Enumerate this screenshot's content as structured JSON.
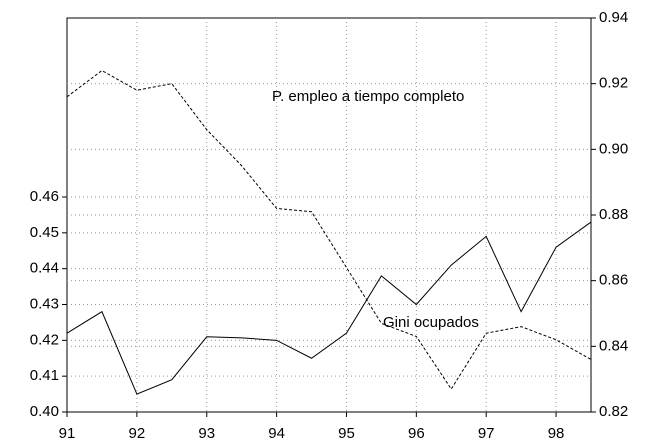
{
  "chart_data": {
    "type": "line",
    "x": [
      91,
      91.5,
      92,
      92.5,
      93,
      93.5,
      94,
      94.5,
      95,
      95.5,
      96,
      96.5,
      97,
      97.5,
      98,
      98.5
    ],
    "xlim": [
      91,
      98.5
    ],
    "xticks": [
      91,
      92,
      93,
      94,
      95,
      96,
      97,
      98
    ],
    "ylim": [
      0.4,
      0.46
    ],
    "yticks": [
      {
        "value": 0.4,
        "label": "0.40"
      },
      {
        "value": 0.41,
        "label": "0.41"
      },
      {
        "value": 0.42,
        "label": "0.42"
      },
      {
        "value": 0.43,
        "label": "0.43"
      },
      {
        "value": 0.44,
        "label": "0.44"
      },
      {
        "value": 0.45,
        "label": "0.45"
      },
      {
        "value": 0.46,
        "label": "0.46"
      }
    ],
    "y2lim": [
      0.82,
      0.94
    ],
    "y2ticks": [
      {
        "value": 0.82,
        "label": "0.82"
      },
      {
        "value": 0.84,
        "label": "0.84"
      },
      {
        "value": 0.86,
        "label": "0.86"
      },
      {
        "value": 0.88,
        "label": "0.88"
      },
      {
        "value": 0.9,
        "label": "0.90"
      },
      {
        "value": 0.92,
        "label": "0.92"
      },
      {
        "value": 0.94,
        "label": "0.94"
      }
    ],
    "grid": true,
    "series": [
      {
        "name": "Gini ocupados",
        "color": "#000000",
        "dash": false,
        "values": [
          0.422,
          0.428,
          0.405,
          0.409,
          0.421,
          0.4207,
          0.42,
          0.415,
          0.422,
          0.438,
          0.43,
          0.441,
          0.449,
          0.428,
          0.446,
          0.453
        ]
      },
      {
        "name": "P. empleo a tiempo completo",
        "color": "#000000",
        "dash": true,
        "axis": "y2",
        "values": [
          0.916,
          0.924,
          0.918,
          0.92,
          0.906,
          0.895,
          0.882,
          0.881,
          0.864,
          0.847,
          0.843,
          0.827,
          0.844,
          0.846,
          0.842,
          0.836
        ]
      }
    ]
  }
}
